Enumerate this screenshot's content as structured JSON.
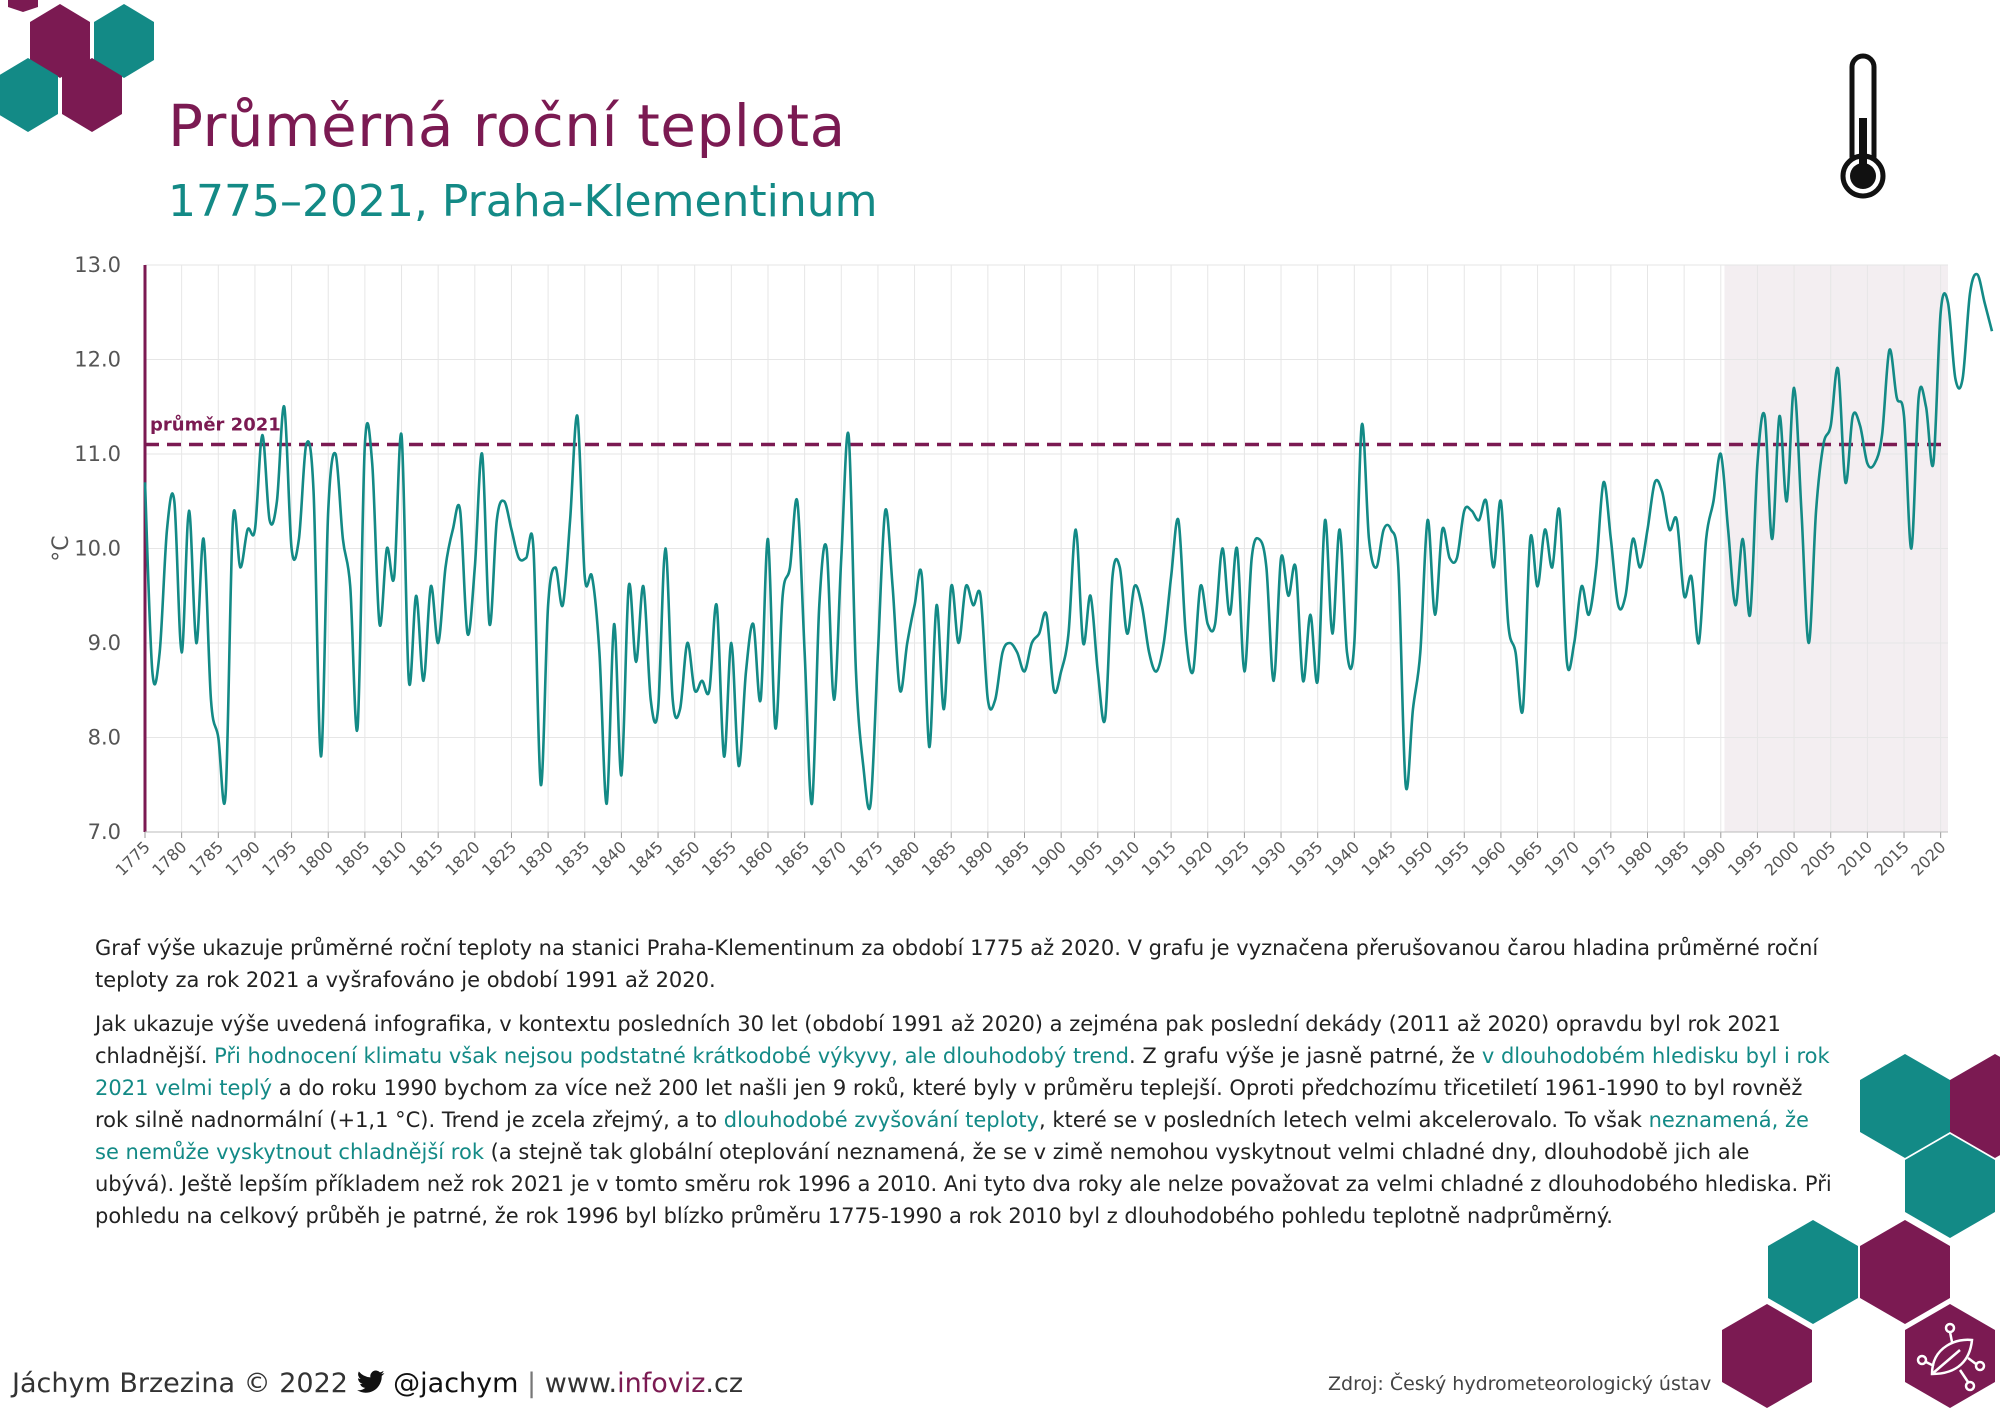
{
  "header": {
    "title": "Průměrná roční teplota",
    "subtitle": "1775–2021, Praha-Klementinum"
  },
  "colors": {
    "brand_purple": "#7b1a52",
    "brand_teal": "#138a86",
    "shade": "#f3eef1"
  },
  "icons": [
    "thermometer-icon",
    "twitter-bird-icon",
    "leaf-network-logo-icon"
  ],
  "chart_data": {
    "type": "line",
    "xlabel": "",
    "ylabel": "°C",
    "ylim": [
      7.0,
      13.0
    ],
    "xlim": [
      1775,
      2021
    ],
    "yticks": [
      "7.0",
      "8.0",
      "9.0",
      "10.0",
      "11.0",
      "12.0",
      "13.0"
    ],
    "xticks": [
      1775,
      1780,
      1785,
      1790,
      1795,
      1800,
      1805,
      1810,
      1815,
      1820,
      1825,
      1830,
      1835,
      1840,
      1845,
      1850,
      1855,
      1860,
      1865,
      1870,
      1875,
      1880,
      1885,
      1890,
      1895,
      1900,
      1905,
      1910,
      1915,
      1920,
      1925,
      1930,
      1935,
      1940,
      1945,
      1950,
      1955,
      1960,
      1965,
      1970,
      1975,
      1980,
      1985,
      1990,
      1995,
      2000,
      2005,
      2010,
      2015,
      2020
    ],
    "grid": true,
    "reference_line": {
      "label": "průměr 2021",
      "value": 11.1
    },
    "shaded_period": [
      1991,
      2020
    ],
    "series": [
      {
        "x_start": 1775,
        "values": [
          10.7,
          8.7,
          8.9,
          10.2,
          10.5,
          8.9,
          10.4,
          9.0,
          10.1,
          8.4,
          8.0,
          7.4,
          10.3,
          9.8,
          10.2,
          10.2,
          11.2,
          10.3,
          10.5,
          11.5,
          10.0,
          10.1,
          11.1,
          10.6,
          7.8,
          10.4,
          11.0,
          10.1,
          9.6,
          8.1,
          11.1,
          10.9,
          9.2,
          10.0,
          9.7,
          11.2,
          8.6,
          9.5,
          8.6,
          9.6,
          9.0,
          9.8,
          10.2,
          10.4,
          9.1,
          9.8,
          11.0,
          9.2,
          10.3,
          10.5,
          10.2,
          9.9,
          9.9,
          10.0,
          7.5,
          9.4,
          9.8,
          9.4,
          10.3,
          11.4,
          9.7,
          9.7,
          8.9,
          7.3,
          9.2,
          7.6,
          9.6,
          8.8,
          9.6,
          8.4,
          8.3,
          10.0,
          8.4,
          8.3,
          9.0,
          8.5,
          8.6,
          8.5,
          9.4,
          7.8,
          9.0,
          7.7,
          8.7,
          9.2,
          8.4,
          10.1,
          8.1,
          9.5,
          9.8,
          10.5,
          8.9,
          7.3,
          9.4,
          10.0,
          8.4,
          9.9,
          11.2,
          8.7,
          7.7,
          7.3,
          8.9,
          10.4,
          9.6,
          8.5,
          9.0,
          9.4,
          9.7,
          7.9,
          9.4,
          8.3,
          9.6,
          9.0,
          9.6,
          9.4,
          9.5,
          8.4,
          8.4,
          8.9,
          9.0,
          8.9,
          8.7,
          9.0,
          9.1,
          9.3,
          8.5,
          8.7,
          9.1,
          10.2,
          9.0,
          9.5,
          8.7,
          8.2,
          9.7,
          9.8,
          9.1,
          9.6,
          9.4,
          8.9,
          8.7,
          9.0,
          9.7,
          10.3,
          9.1,
          8.7,
          9.6,
          9.2,
          9.2,
          10.0,
          9.3,
          10.0,
          8.7,
          9.9,
          10.1,
          9.8,
          8.6,
          9.9,
          9.5,
          9.8,
          8.6,
          9.3,
          8.6,
          10.3,
          9.1,
          10.2,
          8.9,
          9.0,
          11.3,
          10.1,
          9.8,
          10.2,
          10.2,
          9.8,
          7.5,
          8.3,
          8.9,
          10.3,
          9.3,
          10.2,
          9.9,
          9.9,
          10.4,
          10.4,
          10.3,
          10.5,
          9.8,
          10.5,
          9.2,
          8.9,
          8.3,
          10.1,
          9.6,
          10.2,
          9.8,
          10.4,
          8.8,
          9.0,
          9.6,
          9.3,
          9.8,
          10.7,
          10.1,
          9.4,
          9.5,
          10.1,
          9.8,
          10.2,
          10.7,
          10.6,
          10.2,
          10.3,
          9.5,
          9.7,
          9.0,
          10.1,
          10.5,
          11.0,
          10.2,
          9.4,
          10.1,
          9.3,
          10.9,
          11.4,
          10.1,
          11.4,
          10.5,
          11.7,
          10.4,
          9.0,
          10.4,
          11.1,
          11.3,
          11.9,
          10.7,
          11.4,
          11.3,
          10.9,
          10.9,
          11.2,
          12.1,
          11.6,
          11.4,
          10.0,
          11.6,
          11.5,
          10.9,
          12.5,
          12.6,
          11.8,
          11.8,
          12.7,
          12.9,
          12.6,
          12.3
        ]
      }
    ]
  },
  "body_text": {
    "p1": "Graf výše ukazuje průměrné roční teploty na stanici Praha-Klementinum za období 1775 až 2020. V grafu je vyznačena přerušovanou čarou hladina průměrné roční teploty za rok 2021 a vyšrafováno je období 1991 až 2020.",
    "p2_a": "Jak ukazuje výše uvedená infografika, v kontextu posledních 30 let (období 1991 až 2020) a zejména pak poslední dekády (2011 až 2020) opravdu byl rok 2021 chladnější. ",
    "p2_hl1": "Při hodnocení klimatu však nejsou podstatné krátkodobé výkyvy, ale dlouhodobý trend",
    "p2_b": ". Z grafu výše je jasně patrné, že ",
    "p2_hl2": "v dlouhodobém hledisku byl i rok 2021 velmi teplý",
    "p2_c": " a do roku 1990 bychom za více než 200 let našli jen 9 roků, které byly v průměru teplejší. Oproti předchozímu třicetiletí 1961-1990 to byl rovněž rok silně nadnormální (+1,1 °C). Trend je zcela zřejmý, a to ",
    "p2_hl3": "dlouhodobé zvyšování teploty",
    "p2_d": ", které se v posledních letech velmi akcelerovalo. To však ",
    "p2_hl4": "neznamená, že se nemůže vyskytnout chladnější rok",
    "p2_e": " (a stejně tak globální oteplování neznamená, že se v zimě nemohou vyskytnout velmi chladné dny, dlouhodobě jich ale ubývá). Ještě lepším příkladem než rok 2021 je v tomto směru rok 1996 a 2010. Ani tyto dva roky ale nelze považovat za velmi chladné z dlouhodobého hlediska. Při pohledu na celkový průběh je patrné, že rok 1996 byl blízko průměru 1775-1990 a rok 2010 byl z dlouhodobého pohledu teplotně nadprůměrný."
  },
  "footer": {
    "author": "Jáchym Brzezina © 2022",
    "handle": "@jachym",
    "separator": "|",
    "site_prefix": "www.",
    "site_brand": "infoviz",
    "site_suffix": ".cz",
    "source": "Zdroj: Český hydrometeorologický ústav"
  }
}
